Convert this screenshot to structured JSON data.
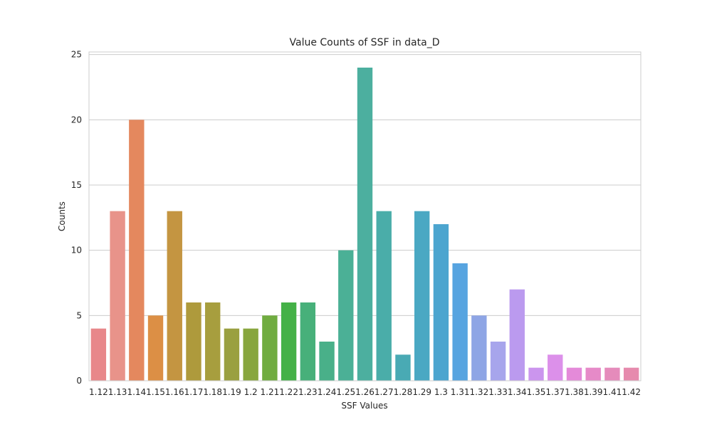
{
  "chart_data": {
    "type": "bar",
    "title": "Value Counts of SSF in data_D",
    "xlabel": "SSF Values",
    "ylabel": "Counts",
    "categories": [
      "1.12",
      "1.13",
      "1.14",
      "1.15",
      "1.16",
      "1.17",
      "1.18",
      "1.19",
      "1.2",
      "1.21",
      "1.22",
      "1.23",
      "1.24",
      "1.25",
      "1.26",
      "1.27",
      "1.28",
      "1.29",
      "1.3",
      "1.31",
      "1.32",
      "1.33",
      "1.34",
      "1.35",
      "1.37",
      "1.38",
      "1.39",
      "1.41",
      "1.42"
    ],
    "values": [
      4,
      13,
      20,
      5,
      13,
      6,
      6,
      4,
      4,
      5,
      6,
      6,
      3,
      10,
      24,
      13,
      2,
      13,
      12,
      9,
      5,
      3,
      7,
      1,
      2,
      1,
      1,
      1,
      1
    ],
    "colors": [
      "#e8878a",
      "#e8938a",
      "#e4885e",
      "#dc8f45",
      "#c49541",
      "#ae9a3c",
      "#a79e3e",
      "#9aa040",
      "#88a63e",
      "#70ac40",
      "#44b147",
      "#47b07a",
      "#49b089",
      "#4bb096",
      "#4caf9f",
      "#4aada9",
      "#49aab4",
      "#4aa8c3",
      "#4ca5cf",
      "#57a4e0",
      "#8ea5e5",
      "#a7a5ec",
      "#bb9aef",
      "#cb95ee",
      "#dc90ea",
      "#e48ad9",
      "#e68ac8",
      "#e58bbb",
      "#e68aad"
    ],
    "yticks": [
      "0",
      "5",
      "10",
      "15",
      "20",
      "25"
    ],
    "ylim": [
      0,
      25.2
    ],
    "grid": "horizontal"
  }
}
